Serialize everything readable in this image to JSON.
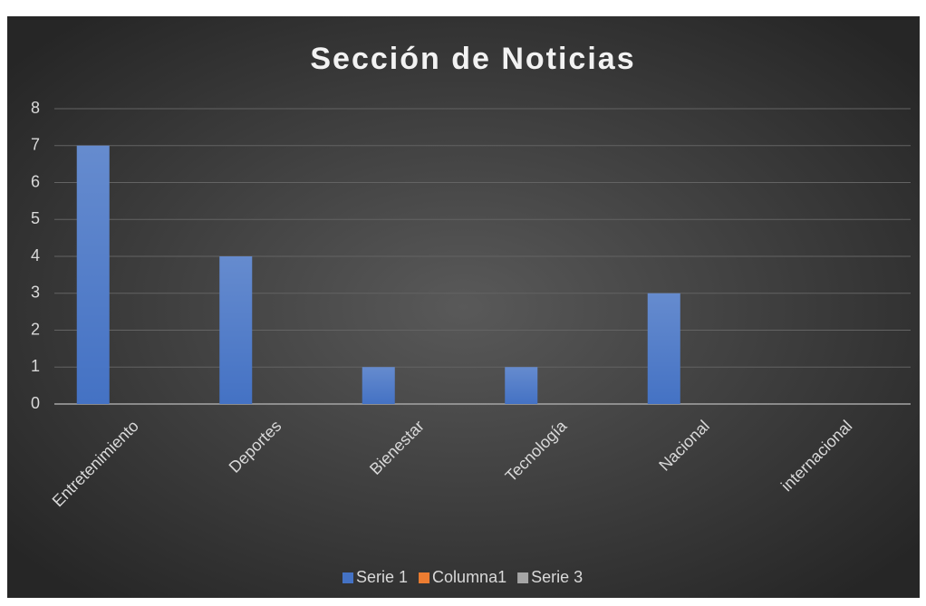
{
  "chart_data": {
    "type": "bar",
    "title": "Sección de Noticias",
    "categories": [
      "Entretenimiento",
      "Deportes",
      "Bienestar",
      "Tecnología",
      "Nacional",
      "internacional"
    ],
    "series": [
      {
        "name": "Serie 1",
        "color": "#4472c4",
        "values": [
          7,
          4,
          1,
          1,
          3,
          null
        ]
      },
      {
        "name": "Columna1",
        "color": "#ed7d31",
        "values": [
          null,
          null,
          null,
          null,
          null,
          null
        ]
      },
      {
        "name": "Serie 3",
        "color": "#a5a5a5",
        "values": [
          null,
          null,
          null,
          null,
          null,
          null
        ]
      }
    ],
    "ylim": [
      0,
      8
    ],
    "yticks": [
      0,
      1,
      2,
      3,
      4,
      5,
      6,
      7,
      8
    ],
    "grid": true,
    "legend": "bottom"
  }
}
